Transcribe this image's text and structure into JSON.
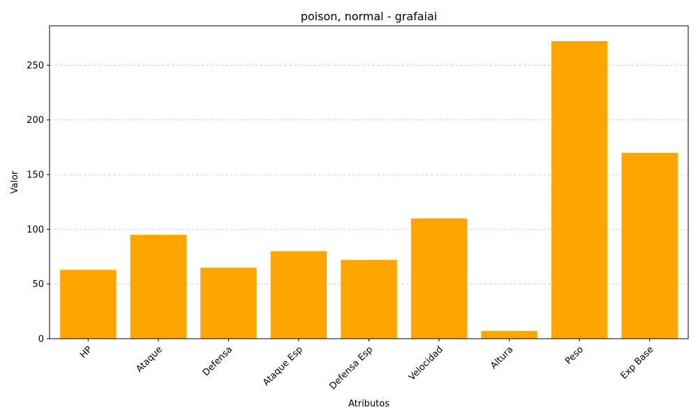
{
  "chart_data": {
    "type": "bar",
    "title": "poison, normal - grafaiai",
    "xlabel": "Atributos",
    "ylabel": "Valor",
    "categories": [
      "HP",
      "Ataque",
      "Defensa",
      "Ataque Esp",
      "Defensa Esp",
      "Velocidad",
      "Altura",
      "Peso",
      "Exp Base"
    ],
    "values": [
      63,
      95,
      65,
      80,
      72,
      110,
      7,
      272,
      170
    ],
    "ylim": [
      0,
      286
    ],
    "yticks": [
      0,
      50,
      100,
      150,
      200,
      250
    ],
    "grid": "y-dashed",
    "bar_color": "#FFA500",
    "grid_color": "#cccccc"
  }
}
